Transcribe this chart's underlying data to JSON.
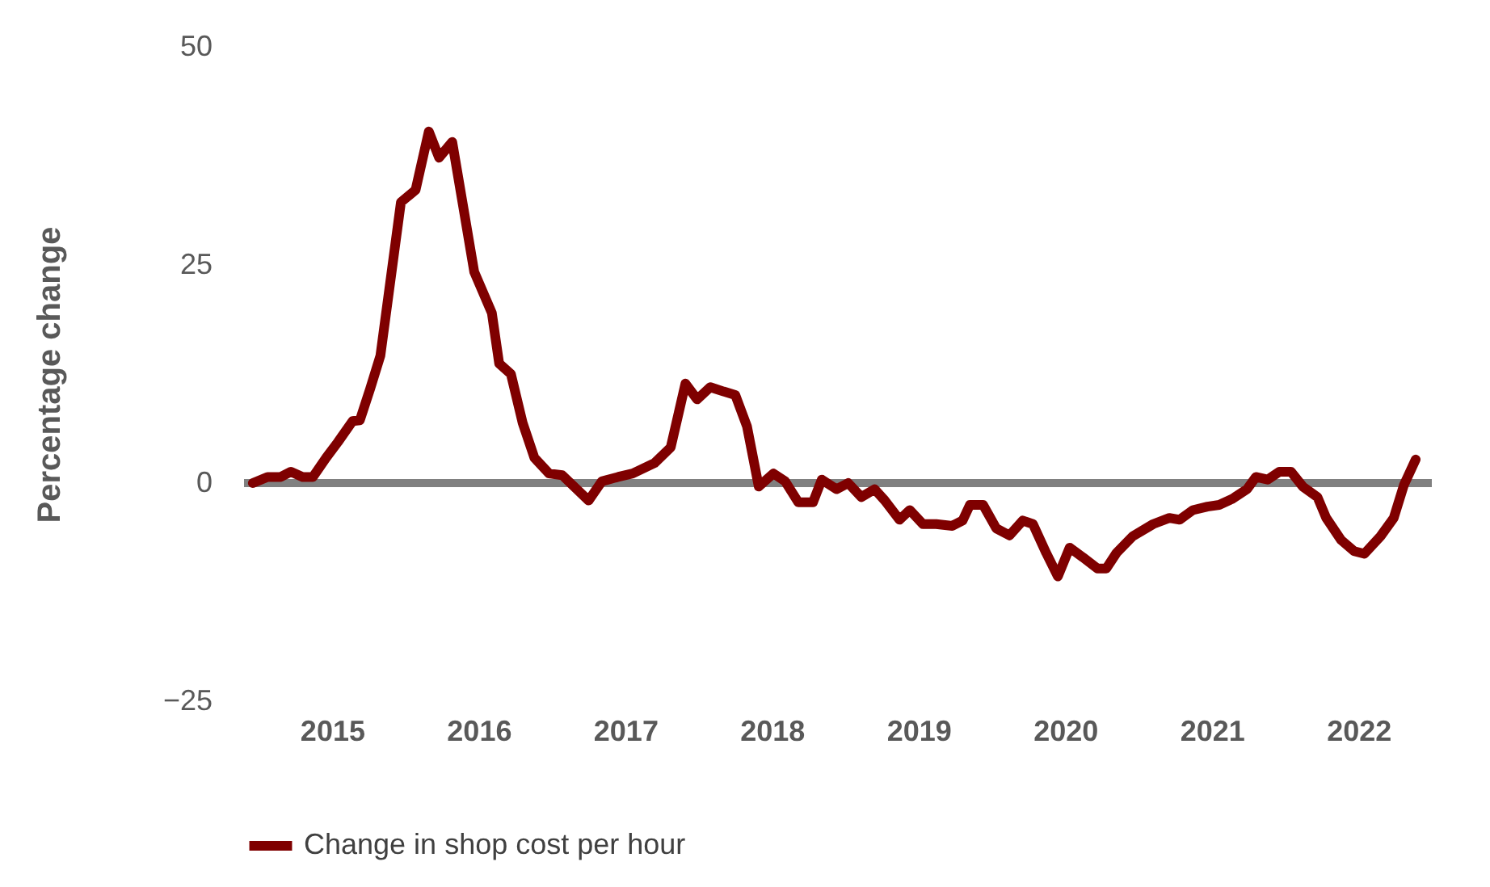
{
  "chart_data": {
    "type": "line",
    "ylabel": "Percentage change",
    "legend": "bottom",
    "grid": false,
    "marker": "none",
    "line_style": "solid",
    "xlim": [
      2014.4,
      2022.5
    ],
    "xticks": [
      2015,
      2016,
      2017,
      2018,
      2019,
      2020,
      2021,
      2022
    ],
    "ylim": [
      -25,
      50
    ],
    "yticks": [
      -25,
      0,
      25,
      50
    ],
    "ref_lines": [
      {
        "axis": "y",
        "value": 0,
        "color": "#808080"
      }
    ],
    "series": [
      {
        "name": "Change in shop cost per hour",
        "color": "#7f0000",
        "x": [
          2014.46,
          2014.56,
          2014.65,
          2014.72,
          2014.8,
          2014.87,
          2014.96,
          2015.04,
          2015.14,
          2015.19,
          2015.26,
          2015.33,
          2015.47,
          2015.57,
          2015.66,
          2015.73,
          2015.82,
          2015.97,
          2016.09,
          2016.14,
          2016.22,
          2016.3,
          2016.38,
          2016.48,
          2016.57,
          2016.75,
          2016.84,
          2016.95,
          2017.05,
          2017.2,
          2017.31,
          2017.41,
          2017.49,
          2017.58,
          2017.67,
          2017.75,
          2017.83,
          2017.91,
          2018.01,
          2018.09,
          2018.18,
          2018.28,
          2018.34,
          2018.44,
          2018.52,
          2018.61,
          2018.7,
          2018.77,
          2018.87,
          2018.94,
          2019.03,
          2019.12,
          2019.23,
          2019.3,
          2019.35,
          2019.44,
          2019.53,
          2019.62,
          2019.71,
          2019.78,
          2019.87,
          2019.95,
          2020.03,
          2020.12,
          2020.22,
          2020.28,
          2020.35,
          2020.46,
          2020.6,
          2020.71,
          2020.78,
          2020.87,
          2020.97,
          2021.05,
          2021.14,
          2021.24,
          2021.3,
          2021.38,
          2021.46,
          2021.54,
          2021.62,
          2021.72,
          2021.78,
          2021.88,
          2021.97,
          2022.04,
          2022.15,
          2022.24,
          2022.31,
          2022.39
        ],
        "values": [
          0,
          0.7,
          0.7,
          1.3,
          0.7,
          0.7,
          2.9,
          4.7,
          7.1,
          7.2,
          10.8,
          14.6,
          32.2,
          33.6,
          40.3,
          37.3,
          39.1,
          24.2,
          19.5,
          13.7,
          12.5,
          6.9,
          2.9,
          1.1,
          0.9,
          -2.0,
          0.2,
          0.7,
          1.1,
          2.3,
          4.1,
          11.4,
          9.6,
          11.0,
          10.5,
          10.1,
          6.5,
          -0.4,
          1.1,
          0.2,
          -2.2,
          -2.2,
          0.4,
          -0.7,
          0,
          -1.6,
          -0.7,
          -2.0,
          -4.2,
          -3.1,
          -4.7,
          -4.7,
          -4.9,
          -4.3,
          -2.5,
          -2.5,
          -5.2,
          -6.0,
          -4.3,
          -4.7,
          -8.0,
          -10.7,
          -7.4,
          -8.5,
          -9.8,
          -9.8,
          -8.0,
          -6.1,
          -4.7,
          -4.0,
          -4.2,
          -3.1,
          -2.7,
          -2.5,
          -1.8,
          -0.7,
          0.7,
          0.4,
          1.3,
          1.3,
          -0.4,
          -1.6,
          -4.0,
          -6.5,
          -7.8,
          -8.1,
          -6.1,
          -4.0,
          -0.2,
          2.7
        ]
      }
    ]
  }
}
